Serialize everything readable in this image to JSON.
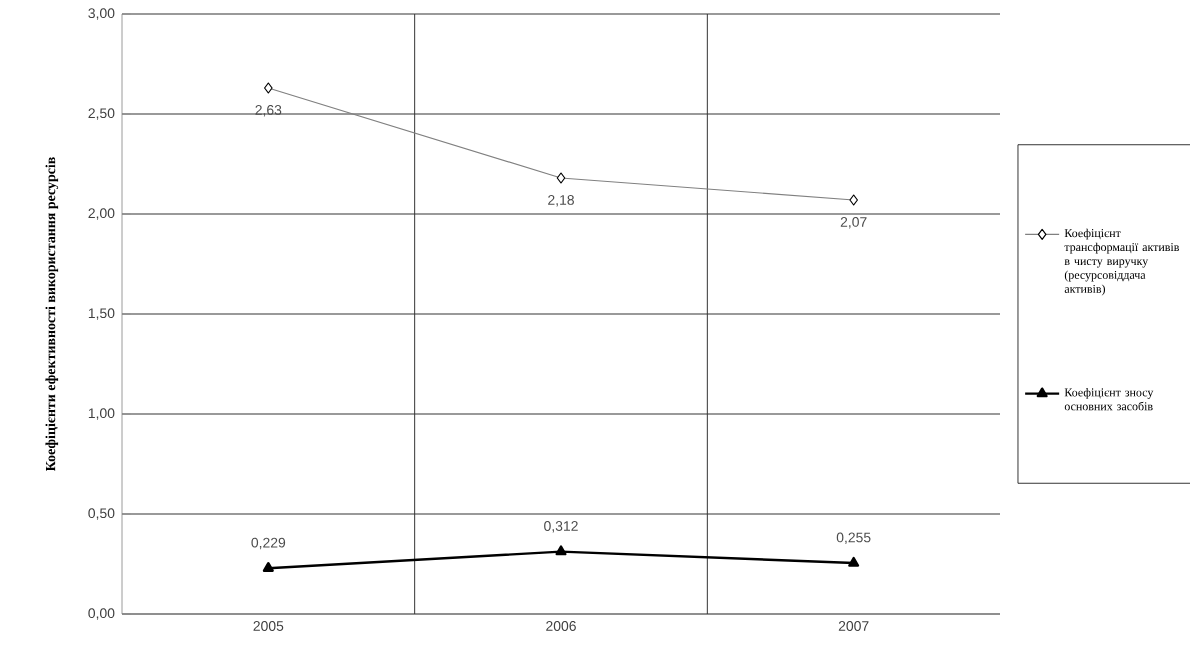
{
  "chart_data": {
    "type": "line",
    "ylabel": "Коефіцієнти ефективності використання ресурсів",
    "categories": [
      "2005",
      "2006",
      "2007"
    ],
    "series": [
      {
        "name": "Коефіцієнт трансформації активів в чисту виручку (ресурсовіддача активів)",
        "color": "#808080",
        "marker": "diamond",
        "values": [
          2.63,
          2.18,
          2.07
        ],
        "value_labels": [
          "2,63",
          "2,18",
          "2,07"
        ]
      },
      {
        "name": "Коефіцієнт зносу основних засобів",
        "color": "#000000",
        "marker": "triangle",
        "values": [
          0.229,
          0.312,
          0.255
        ],
        "value_labels": [
          "0,229",
          "0,312",
          "0,255"
        ]
      }
    ],
    "ylim": [
      0,
      3
    ],
    "yticks": [
      {
        "value": 0,
        "label": "0,00"
      },
      {
        "value": 0.5,
        "label": "0,50"
      },
      {
        "value": 1,
        "label": "1,00"
      },
      {
        "value": 1.5,
        "label": "1,50"
      },
      {
        "value": 2,
        "label": "2,00"
      },
      {
        "value": 2.5,
        "label": "2,50"
      },
      {
        "value": 3,
        "label": "3,00"
      }
    ],
    "grid": true,
    "legend": "right"
  }
}
